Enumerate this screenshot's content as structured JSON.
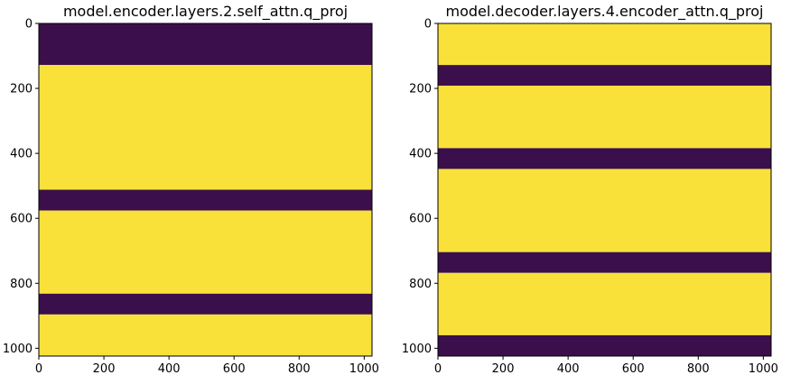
{
  "colors": {
    "low": "#3b0f4b",
    "high": "#f9e13a",
    "frame": "#000000",
    "background": "#ffffff"
  },
  "chart_data": [
    {
      "type": "heatmap",
      "title": "model.encoder.layers.2.self_attn.q_proj",
      "xlabel": "",
      "ylabel": "",
      "xlim": [
        0,
        1024
      ],
      "ylim": [
        1024,
        0
      ],
      "x_ticks": [
        "0",
        "200",
        "400",
        "600",
        "800",
        "1000"
      ],
      "y_ticks": [
        "0",
        "200",
        "400",
        "600",
        "800",
        "1000"
      ],
      "grid": false,
      "bands": [
        {
          "start": 0,
          "end": 128,
          "level": "low"
        },
        {
          "start": 128,
          "end": 512,
          "level": "high"
        },
        {
          "start": 512,
          "end": 576,
          "level": "low"
        },
        {
          "start": 576,
          "end": 832,
          "level": "high"
        },
        {
          "start": 832,
          "end": 896,
          "level": "low"
        },
        {
          "start": 896,
          "end": 1024,
          "level": "high"
        }
      ]
    },
    {
      "type": "heatmap",
      "title": "model.decoder.layers.4.encoder_attn.q_proj",
      "xlabel": "",
      "ylabel": "",
      "xlim": [
        0,
        1024
      ],
      "ylim": [
        1024,
        0
      ],
      "x_ticks": [
        "0",
        "200",
        "400",
        "600",
        "800",
        "1000"
      ],
      "y_ticks": [
        "0",
        "200",
        "400",
        "600",
        "800",
        "1000"
      ],
      "grid": false,
      "bands": [
        {
          "start": 0,
          "end": 128,
          "level": "high"
        },
        {
          "start": 128,
          "end": 192,
          "level": "low"
        },
        {
          "start": 192,
          "end": 384,
          "level": "high"
        },
        {
          "start": 384,
          "end": 448,
          "level": "low"
        },
        {
          "start": 448,
          "end": 704,
          "level": "high"
        },
        {
          "start": 704,
          "end": 768,
          "level": "low"
        },
        {
          "start": 768,
          "end": 960,
          "level": "high"
        },
        {
          "start": 960,
          "end": 1024,
          "level": "low"
        }
      ]
    }
  ]
}
